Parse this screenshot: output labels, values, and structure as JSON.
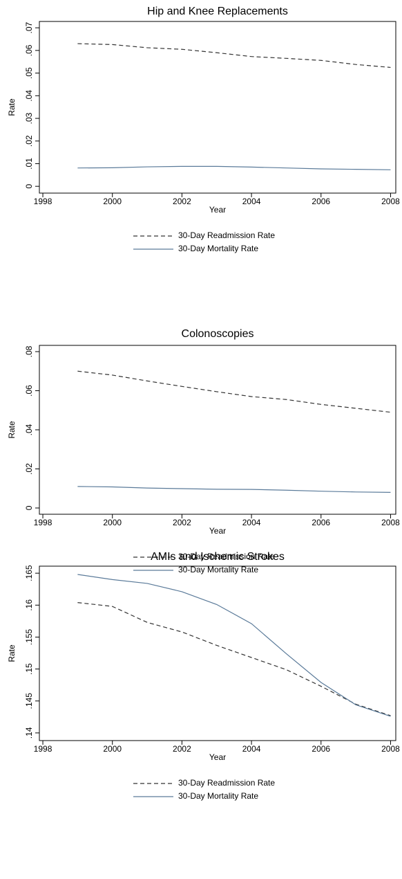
{
  "chart_data": [
    {
      "type": "line",
      "title": "Hip and Knee Replacements",
      "x_label": "Year",
      "y_label": "Rate",
      "x": [
        1999,
        2000,
        2001,
        2002,
        2003,
        2004,
        2005,
        2006,
        2007,
        2008
      ],
      "series": [
        {
          "name": "30-Day Readmission Rate",
          "color": "#333333",
          "line_style": "dashed",
          "values": [
            0.063,
            0.0626,
            0.0612,
            0.0605,
            0.059,
            0.0573,
            0.0565,
            0.0556,
            0.0538,
            0.0525
          ]
        },
        {
          "name": "30-Day Mortality Rate",
          "color": "#5a7a99",
          "line_style": "solid",
          "values": [
            0.0081,
            0.0082,
            0.0086,
            0.0088,
            0.0088,
            0.0085,
            0.0081,
            0.0077,
            0.0075,
            0.0073
          ]
        }
      ],
      "xlim": [
        1997.9,
        2008.15
      ],
      "xticks": [
        1998,
        2000,
        2002,
        2004,
        2006,
        2008
      ],
      "ylim": [
        -0.003,
        0.0728
      ],
      "yticks": [
        0,
        {
          "value": 0.01,
          "label": ".01"
        },
        {
          "value": 0.02,
          "label": ".02"
        },
        {
          "value": 0.03,
          "label": ".03"
        },
        {
          "value": 0.04,
          "label": ".04"
        },
        {
          "value": 0.05,
          "label": ".05"
        },
        {
          "value": 0.06,
          "label": ".06"
        },
        {
          "value": 0.07,
          "label": ".07"
        }
      ],
      "legend": "bottom"
    },
    {
      "type": "line",
      "title": "Colonoscopies",
      "x_label": "Year",
      "y_label": "Rate",
      "x": [
        1999,
        2000,
        2001,
        2002,
        2003,
        2004,
        2005,
        2006,
        2007,
        2008
      ],
      "series": [
        {
          "name": "30-Day Readmission Rate",
          "color": "#333333",
          "line_style": "dashed",
          "values": [
            0.07,
            0.068,
            0.065,
            0.0622,
            0.0595,
            0.057,
            0.0555,
            0.053,
            0.051,
            0.049
          ]
        },
        {
          "name": "30-Day Mortality Rate",
          "color": "#5a7a99",
          "line_style": "solid",
          "values": [
            0.011,
            0.0108,
            0.0102,
            0.0099,
            0.0096,
            0.0095,
            0.0091,
            0.0086,
            0.0082,
            0.008
          ]
        }
      ],
      "xlim": [
        1997.9,
        2008.15
      ],
      "xticks": [
        1998,
        2000,
        2002,
        2004,
        2006,
        2008
      ],
      "ylim": [
        -0.0032,
        0.0832
      ],
      "yticks": [
        0,
        {
          "value": 0.02,
          "label": ".02"
        },
        {
          "value": 0.04,
          "label": ".04"
        },
        {
          "value": 0.06,
          "label": ".06"
        },
        {
          "value": 0.08,
          "label": ".08"
        }
      ],
      "legend": "bottom"
    },
    {
      "type": "line",
      "title": "AMIs and Ischemic Strokes",
      "x_label": "Year",
      "y_label": "Rate",
      "x": [
        1999,
        2000,
        2001,
        2002,
        2003,
        2004,
        2005,
        2006,
        2007,
        2008
      ],
      "series": [
        {
          "name": "30-Day Readmission Rate",
          "color": "#333333",
          "line_style": "dashed",
          "values": [
            0.1604,
            0.1598,
            0.1573,
            0.1558,
            0.1537,
            0.1518,
            0.1499,
            0.1473,
            0.1445,
            0.1427
          ]
        },
        {
          "name": "30-Day Mortality Rate",
          "color": "#5a7a99",
          "line_style": "solid",
          "values": [
            0.1648,
            0.164,
            0.1634,
            0.1621,
            0.1601,
            0.1571,
            0.1524,
            0.1479,
            0.1444,
            0.1426
          ]
        }
      ],
      "xlim": [
        1997.9,
        2008.15
      ],
      "xticks": [
        1998,
        2000,
        2002,
        2004,
        2006,
        2008
      ],
      "ylim": [
        0.1388,
        0.1661
      ],
      "yticks": [
        {
          "value": 0.14,
          "label": ".14"
        },
        {
          "value": 0.145,
          "label": ".145"
        },
        {
          "value": 0.15,
          "label": ".15"
        },
        {
          "value": 0.155,
          "label": ".155"
        },
        {
          "value": 0.16,
          "label": ".16"
        },
        {
          "value": 0.165,
          "label": ".165"
        }
      ],
      "legend": "bottom"
    }
  ]
}
